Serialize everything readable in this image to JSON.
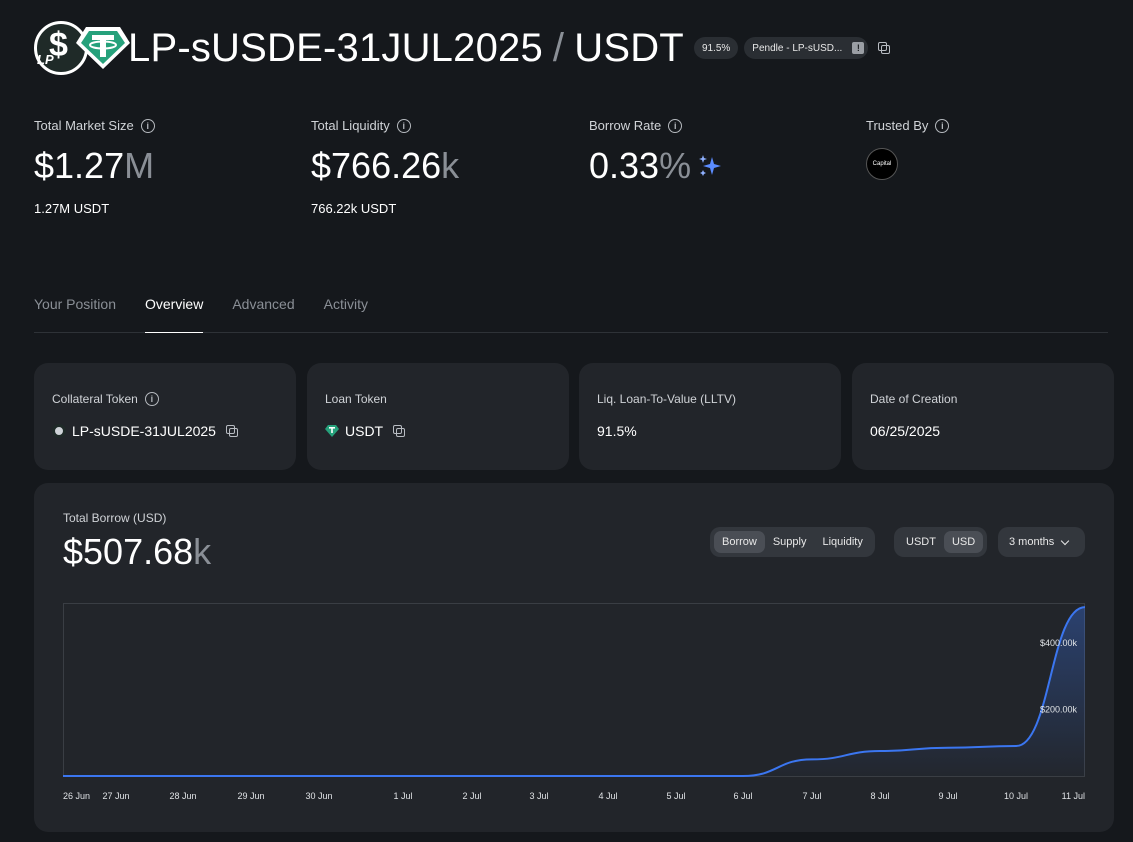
{
  "header": {
    "pair_collateral": "LP-sUSDE-31JUL2025",
    "separator": "/",
    "pair_loan": "USDT",
    "lltv_pill": "91.5%",
    "oracle_pill": "Pendle - LP-sUSD...",
    "oracle_warn": "!",
    "logo_badge": "LP"
  },
  "stats": {
    "total_market_size": {
      "label": "Total Market Size",
      "value": "$1.27",
      "unit": "M",
      "sub": "1.27M USDT"
    },
    "total_liquidity": {
      "label": "Total Liquidity",
      "value": "$766.26",
      "unit": "k",
      "sub": "766.22k USDT"
    },
    "borrow_rate": {
      "label": "Borrow Rate",
      "value": "0.33",
      "unit": "%"
    },
    "trusted_by": {
      "label": "Trusted By",
      "avatar_text": "Capital"
    }
  },
  "tabs": [
    "Your Position",
    "Overview",
    "Advanced",
    "Activity"
  ],
  "active_tab": "Overview",
  "cards": {
    "collateral": {
      "label": "Collateral Token",
      "value": "LP-sUSDE-31JUL2025"
    },
    "loan": {
      "label": "Loan Token",
      "value": "USDT"
    },
    "lltv": {
      "label": "Liq. Loan-To-Value (LLTV)",
      "value": "91.5%"
    },
    "created": {
      "label": "Date of Creation",
      "value": "06/25/2025"
    }
  },
  "panel": {
    "label": "Total Borrow (USD)",
    "value": "$507.68",
    "unit": "k",
    "metric_options": [
      "Borrow",
      "Supply",
      "Liquidity"
    ],
    "metric_selected": "Borrow",
    "currency_options": [
      "USDT",
      "USD"
    ],
    "currency_selected": "USD",
    "range": "3 months"
  },
  "colors": {
    "line": "#3b76f0",
    "background": "#15181c",
    "card": "#22252a",
    "sparkle": "#5b8cff"
  },
  "chart_data": {
    "type": "area",
    "x": [
      "26 Jun",
      "27 Jun",
      "28 Jun",
      "29 Jun",
      "30 Jun",
      "1 Jul",
      "2 Jul",
      "3 Jul",
      "4 Jul",
      "5 Jul",
      "6 Jul",
      "7 Jul",
      "8 Jul",
      "9 Jul",
      "10 Jul",
      "11 Jul"
    ],
    "series": [
      {
        "values": [
          0,
          0,
          0,
          0,
          0,
          0,
          0,
          0,
          0,
          0,
          0,
          50000,
          75000,
          85000,
          90000,
          507680
        ]
      }
    ],
    "y_ticks": [
      "$200.00k",
      "$400.00k"
    ],
    "y_tick_values": [
      200000,
      400000
    ],
    "ylim": [
      0,
      520000
    ],
    "grid": false
  }
}
